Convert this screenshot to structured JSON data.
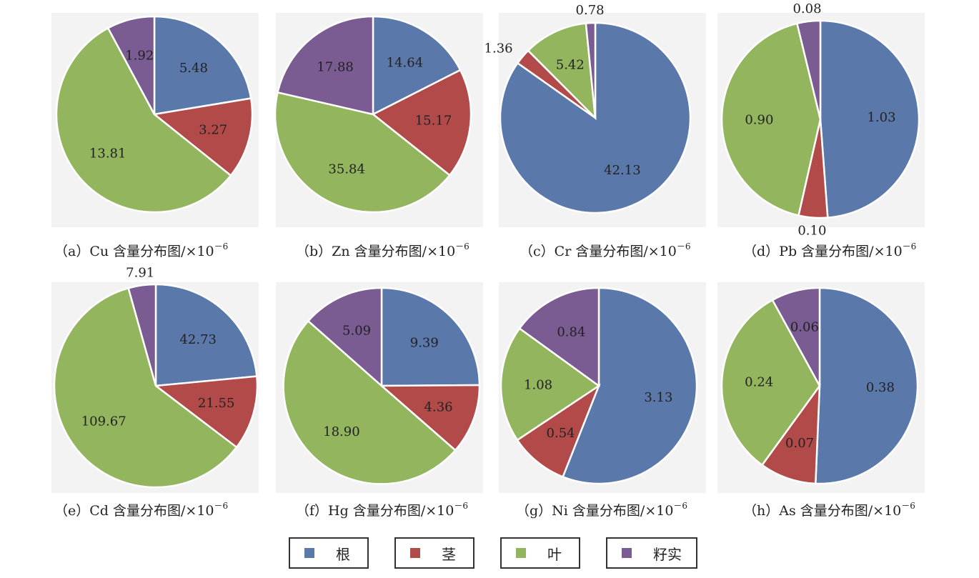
{
  "legend": [
    {
      "name": "根",
      "color": "#5b78ab"
    },
    {
      "name": "茎",
      "color": "#b24a4a"
    },
    {
      "name": "叶",
      "color": "#93b55e"
    },
    {
      "name": "籽实",
      "color": "#7a5b92"
    }
  ],
  "chart_data": [
    {
      "type": "pie",
      "caption_prefix": "（a）",
      "caption_element": "Cu",
      "caption_text": " 含量分布图/×10",
      "caption_exp": "－6",
      "series": [
        {
          "name": "根",
          "value": 5.48,
          "label": "5.48"
        },
        {
          "name": "茎",
          "value": 3.27,
          "label": "3.27"
        },
        {
          "name": "叶",
          "value": 13.81,
          "label": "13.81"
        },
        {
          "name": "籽实",
          "value": 1.92,
          "label": "1.92"
        }
      ]
    },
    {
      "type": "pie",
      "caption_prefix": "（b）",
      "caption_element": "Zn",
      "caption_text": " 含量分布图/×10",
      "caption_exp": "－6",
      "series": [
        {
          "name": "根",
          "value": 14.64,
          "label": "14.64"
        },
        {
          "name": "茎",
          "value": 15.17,
          "label": "15.17"
        },
        {
          "name": "叶",
          "value": 35.84,
          "label": "35.84"
        },
        {
          "name": "籽实",
          "value": 17.88,
          "label": "17.88"
        }
      ]
    },
    {
      "type": "pie",
      "caption_prefix": "（c）",
      "caption_element": "Cr",
      "caption_text": " 含量分布图/×10",
      "caption_exp": "－6",
      "series": [
        {
          "name": "根",
          "value": 42.13,
          "label": "42.13"
        },
        {
          "name": "茎",
          "value": 1.36,
          "label": "1.36"
        },
        {
          "name": "叶",
          "value": 5.42,
          "label": "5.42"
        },
        {
          "name": "籽实",
          "value": 0.78,
          "label": "0.78"
        }
      ]
    },
    {
      "type": "pie",
      "caption_prefix": "（d）",
      "caption_element": "Pb",
      "caption_text": " 含量分布图/×10",
      "caption_exp": "－6",
      "series": [
        {
          "name": "根",
          "value": 1.03,
          "label": "1.03"
        },
        {
          "name": "茎",
          "value": 0.1,
          "label": "0.10"
        },
        {
          "name": "叶",
          "value": 0.9,
          "label": "0.90"
        },
        {
          "name": "籽实",
          "value": 0.08,
          "label": "0.08"
        }
      ]
    },
    {
      "type": "pie",
      "caption_prefix": "（e）",
      "caption_element": "Cd",
      "caption_text": " 含量分布图/×10",
      "caption_exp": "－6",
      "series": [
        {
          "name": "根",
          "value": 42.73,
          "label": "42.73"
        },
        {
          "name": "茎",
          "value": 21.55,
          "label": "21.55"
        },
        {
          "name": "叶",
          "value": 109.67,
          "label": "109.67"
        },
        {
          "name": "籽实",
          "value": 7.91,
          "label": "7.91"
        }
      ]
    },
    {
      "type": "pie",
      "caption_prefix": "（f）",
      "caption_element": "Hg",
      "caption_text": " 含量分布图/×10",
      "caption_exp": "－6",
      "series": [
        {
          "name": "根",
          "value": 9.39,
          "label": "9.39"
        },
        {
          "name": "茎",
          "value": 4.36,
          "label": "4.36"
        },
        {
          "name": "叶",
          "value": 18.9,
          "label": "18.90"
        },
        {
          "name": "籽实",
          "value": 5.09,
          "label": "5.09"
        }
      ]
    },
    {
      "type": "pie",
      "caption_prefix": "（g）",
      "caption_element": "Ni",
      "caption_text": " 含量分布图/×10",
      "caption_exp": "－6",
      "series": [
        {
          "name": "根",
          "value": 3.13,
          "label": "3.13"
        },
        {
          "name": "茎",
          "value": 0.54,
          "label": "0.54"
        },
        {
          "name": "叶",
          "value": 1.08,
          "label": "1.08"
        },
        {
          "name": "籽实",
          "value": 0.84,
          "label": "0.84"
        }
      ]
    },
    {
      "type": "pie",
      "caption_prefix": "（h）",
      "caption_element": "As",
      "caption_text": " 含量分布图/×10",
      "caption_exp": "－6",
      "series": [
        {
          "name": "根",
          "value": 0.38,
          "label": "0.38"
        },
        {
          "name": "茎",
          "value": 0.07,
          "label": "0.07"
        },
        {
          "name": "叶",
          "value": 0.24,
          "label": "0.24"
        },
        {
          "name": "籽实",
          "value": 0.06,
          "label": "0.06"
        }
      ]
    }
  ]
}
